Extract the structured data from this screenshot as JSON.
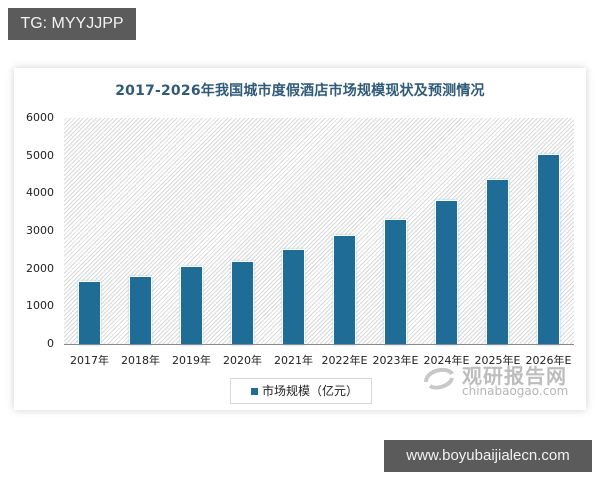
{
  "watermarks": {
    "top_tag": "TG: MYYJJPP",
    "bottom_tag": "www.boyubaijialecn.com",
    "source_cn": "观研报告网",
    "source_en": "chinabaogao.com"
  },
  "chart_data": {
    "type": "bar",
    "title": "2017-2026年我国城市度假酒店市场规模现状及预测情况",
    "xlabel": "",
    "ylabel": "",
    "categories": [
      "2017年",
      "2018年",
      "2019年",
      "2020年",
      "2021年",
      "2022年E",
      "2023年E",
      "2024年E",
      "2025年E",
      "2026年E"
    ],
    "series": [
      {
        "name": "市场规模（亿元）",
        "values": [
          1670,
          1800,
          2070,
          2200,
          2520,
          2890,
          3320,
          3820,
          4380,
          5040
        ],
        "color": "#1f6d96"
      }
    ],
    "ylim": [
      0,
      6000
    ],
    "yticks": [
      "0",
      "1000",
      "2000",
      "3000",
      "4000",
      "5000",
      "6000"
    ],
    "grid": false,
    "legend_position": "bottom"
  }
}
